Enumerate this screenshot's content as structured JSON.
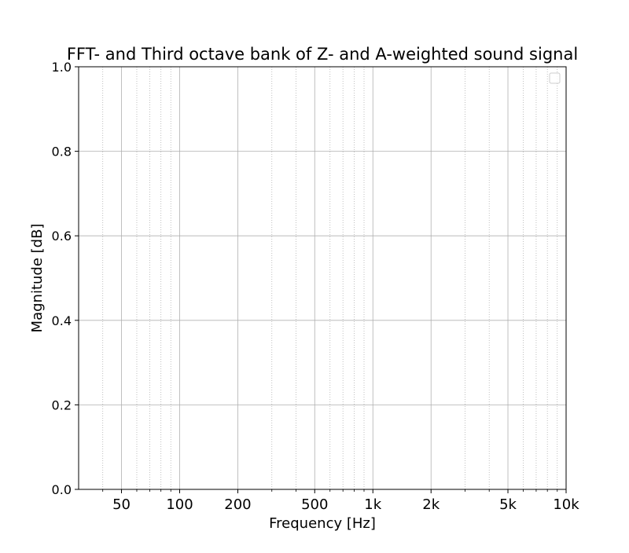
{
  "chart_data": {
    "type": "line",
    "title": "FFT- and Third octave bank of Z- and A-weighted sound signal",
    "xlabel": "Frequency [Hz]",
    "ylabel": "Magnitude [dB]",
    "xscale": "log",
    "xlim": [
      30,
      10000
    ],
    "ylim": [
      0.0,
      1.0
    ],
    "x_ticks": [
      {
        "value": 50,
        "label": "50"
      },
      {
        "value": 100,
        "label": "100"
      },
      {
        "value": 200,
        "label": "200"
      },
      {
        "value": 500,
        "label": "500"
      },
      {
        "value": 1000,
        "label": "1k"
      },
      {
        "value": 2000,
        "label": "2k"
      },
      {
        "value": 5000,
        "label": "5k"
      },
      {
        "value": 10000,
        "label": "10k"
      }
    ],
    "x_minor_grid": [
      40,
      60,
      70,
      80,
      90,
      300,
      400,
      600,
      700,
      800,
      900,
      3000,
      4000,
      6000,
      7000,
      8000,
      9000
    ],
    "y_ticks": [
      {
        "value": 0.0,
        "label": "0.0"
      },
      {
        "value": 0.2,
        "label": "0.2"
      },
      {
        "value": 0.4,
        "label": "0.4"
      },
      {
        "value": 0.6,
        "label": "0.6"
      },
      {
        "value": 0.8,
        "label": "0.8"
      },
      {
        "value": 1.0,
        "label": "1.0"
      }
    ],
    "grid": {
      "major": true,
      "minor": true
    },
    "legend": {
      "placement": "top-right",
      "entries": []
    },
    "series": [],
    "colors": {
      "major_grid": "#b0b0b0",
      "minor_grid": "#b0b0b0",
      "axes": "#000000",
      "legend_border": "#cccccc"
    }
  }
}
